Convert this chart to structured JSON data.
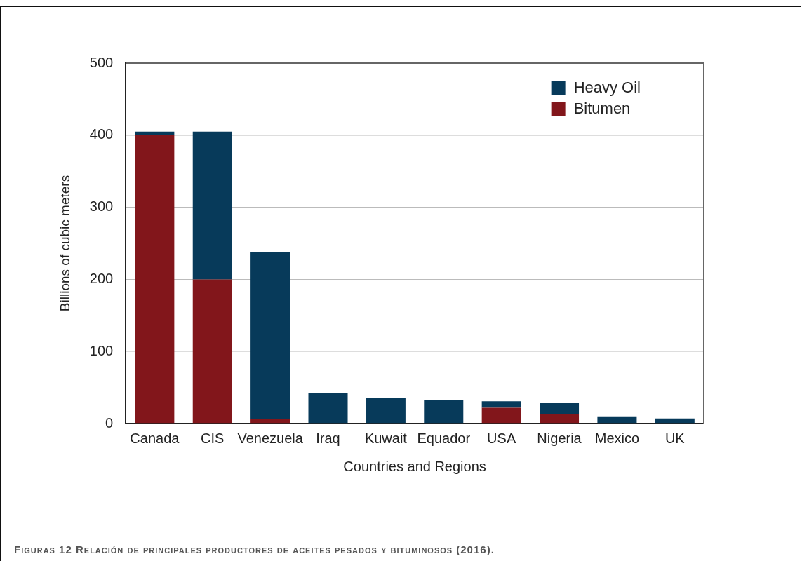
{
  "chart_data": {
    "type": "bar",
    "xlabel": "Countries and Regions",
    "ylabel": "Billions of cubic meters",
    "categories": [
      "Canada",
      "CIS",
      "Venezuela",
      "Iraq",
      "Kuwait",
      "Equador",
      "USA",
      "Nigeria",
      "Mexico",
      "UK"
    ],
    "series": [
      {
        "name": "Bitumen",
        "color": "#82161b",
        "values": [
          400,
          200,
          6,
          0,
          0,
          0,
          22,
          13,
          0,
          0
        ]
      },
      {
        "name": "Heavy Oil",
        "color": "#073a5a",
        "values": [
          5,
          205,
          232,
          42,
          35,
          33,
          9,
          16,
          10,
          7
        ]
      }
    ],
    "stacked": true,
    "ylim": [
      0,
      500
    ],
    "yticks": [
      0,
      100,
      200,
      300,
      400,
      500
    ],
    "grid": "y",
    "legend": "top right",
    "annotations": [
      "Figuras 12 Relación de principales productores de aceites pesados y bituminosos (2016)."
    ]
  }
}
